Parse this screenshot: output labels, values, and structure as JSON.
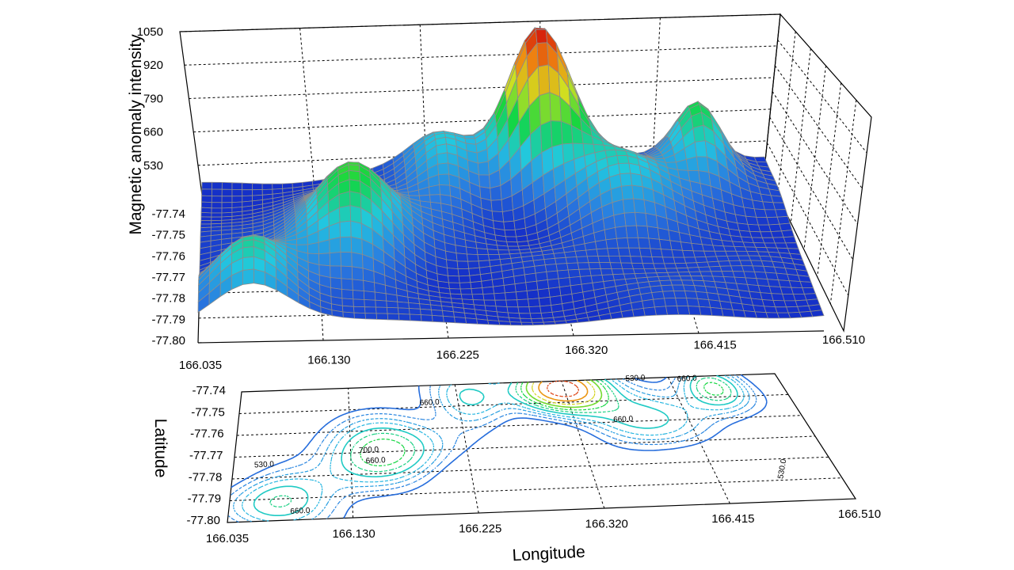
{
  "chart_data": [
    {
      "type": "surface",
      "title": "",
      "xlabel": "",
      "ylabel": "",
      "zlabel": "Magnetic anomaly intensity",
      "x_ticks": [
        "166.035",
        "166.130",
        "166.225",
        "166.320",
        "166.415",
        "166.510"
      ],
      "y_ticks": [
        "-77.74",
        "-77.75",
        "-77.76",
        "-77.77",
        "-77.78",
        "-77.79",
        "-77.80"
      ],
      "z_ticks": [
        "1050",
        "920",
        "790",
        "660",
        "530"
      ],
      "xlim": [
        166.035,
        166.51
      ],
      "ylim": [
        -77.8,
        -77.74
      ],
      "zlim": [
        430,
        1050
      ],
      "grid": true,
      "colormap": [
        "#1530c8",
        "#2a7ae0",
        "#22c8e0",
        "#12d640",
        "#cfe020",
        "#f08a10",
        "#d41a0a"
      ],
      "peaks": [
        {
          "x": 166.318,
          "y": -77.743,
          "z": 1045
        },
        {
          "x": 166.155,
          "y": -77.77,
          "z": 770
        },
        {
          "x": 166.075,
          "y": -77.79,
          "z": 690
        },
        {
          "x": 166.45,
          "y": -77.745,
          "z": 745
        },
        {
          "x": 166.375,
          "y": -77.758,
          "z": 690
        },
        {
          "x": 166.235,
          "y": -77.748,
          "z": 665
        }
      ]
    },
    {
      "type": "contour",
      "xlabel": "Longitude",
      "ylabel": "Latitude",
      "x_ticks": [
        "166.035",
        "166.130",
        "166.225",
        "166.320",
        "166.415",
        "166.510"
      ],
      "y_ticks": [
        "-77.74",
        "-77.75",
        "-77.76",
        "-77.77",
        "-77.78",
        "-77.79",
        "-77.80"
      ],
      "xlim": [
        166.035,
        166.51
      ],
      "ylim": [
        -77.8,
        -77.74
      ],
      "levels": [
        530,
        560,
        590,
        620,
        660,
        700,
        740,
        790,
        850,
        920,
        1000
      ],
      "contour_labels": [
        "530.0",
        "660.0",
        "660.0",
        "660.0",
        "660.0",
        "700.0",
        "660.0",
        "530.0",
        "530.0"
      ]
    }
  ]
}
